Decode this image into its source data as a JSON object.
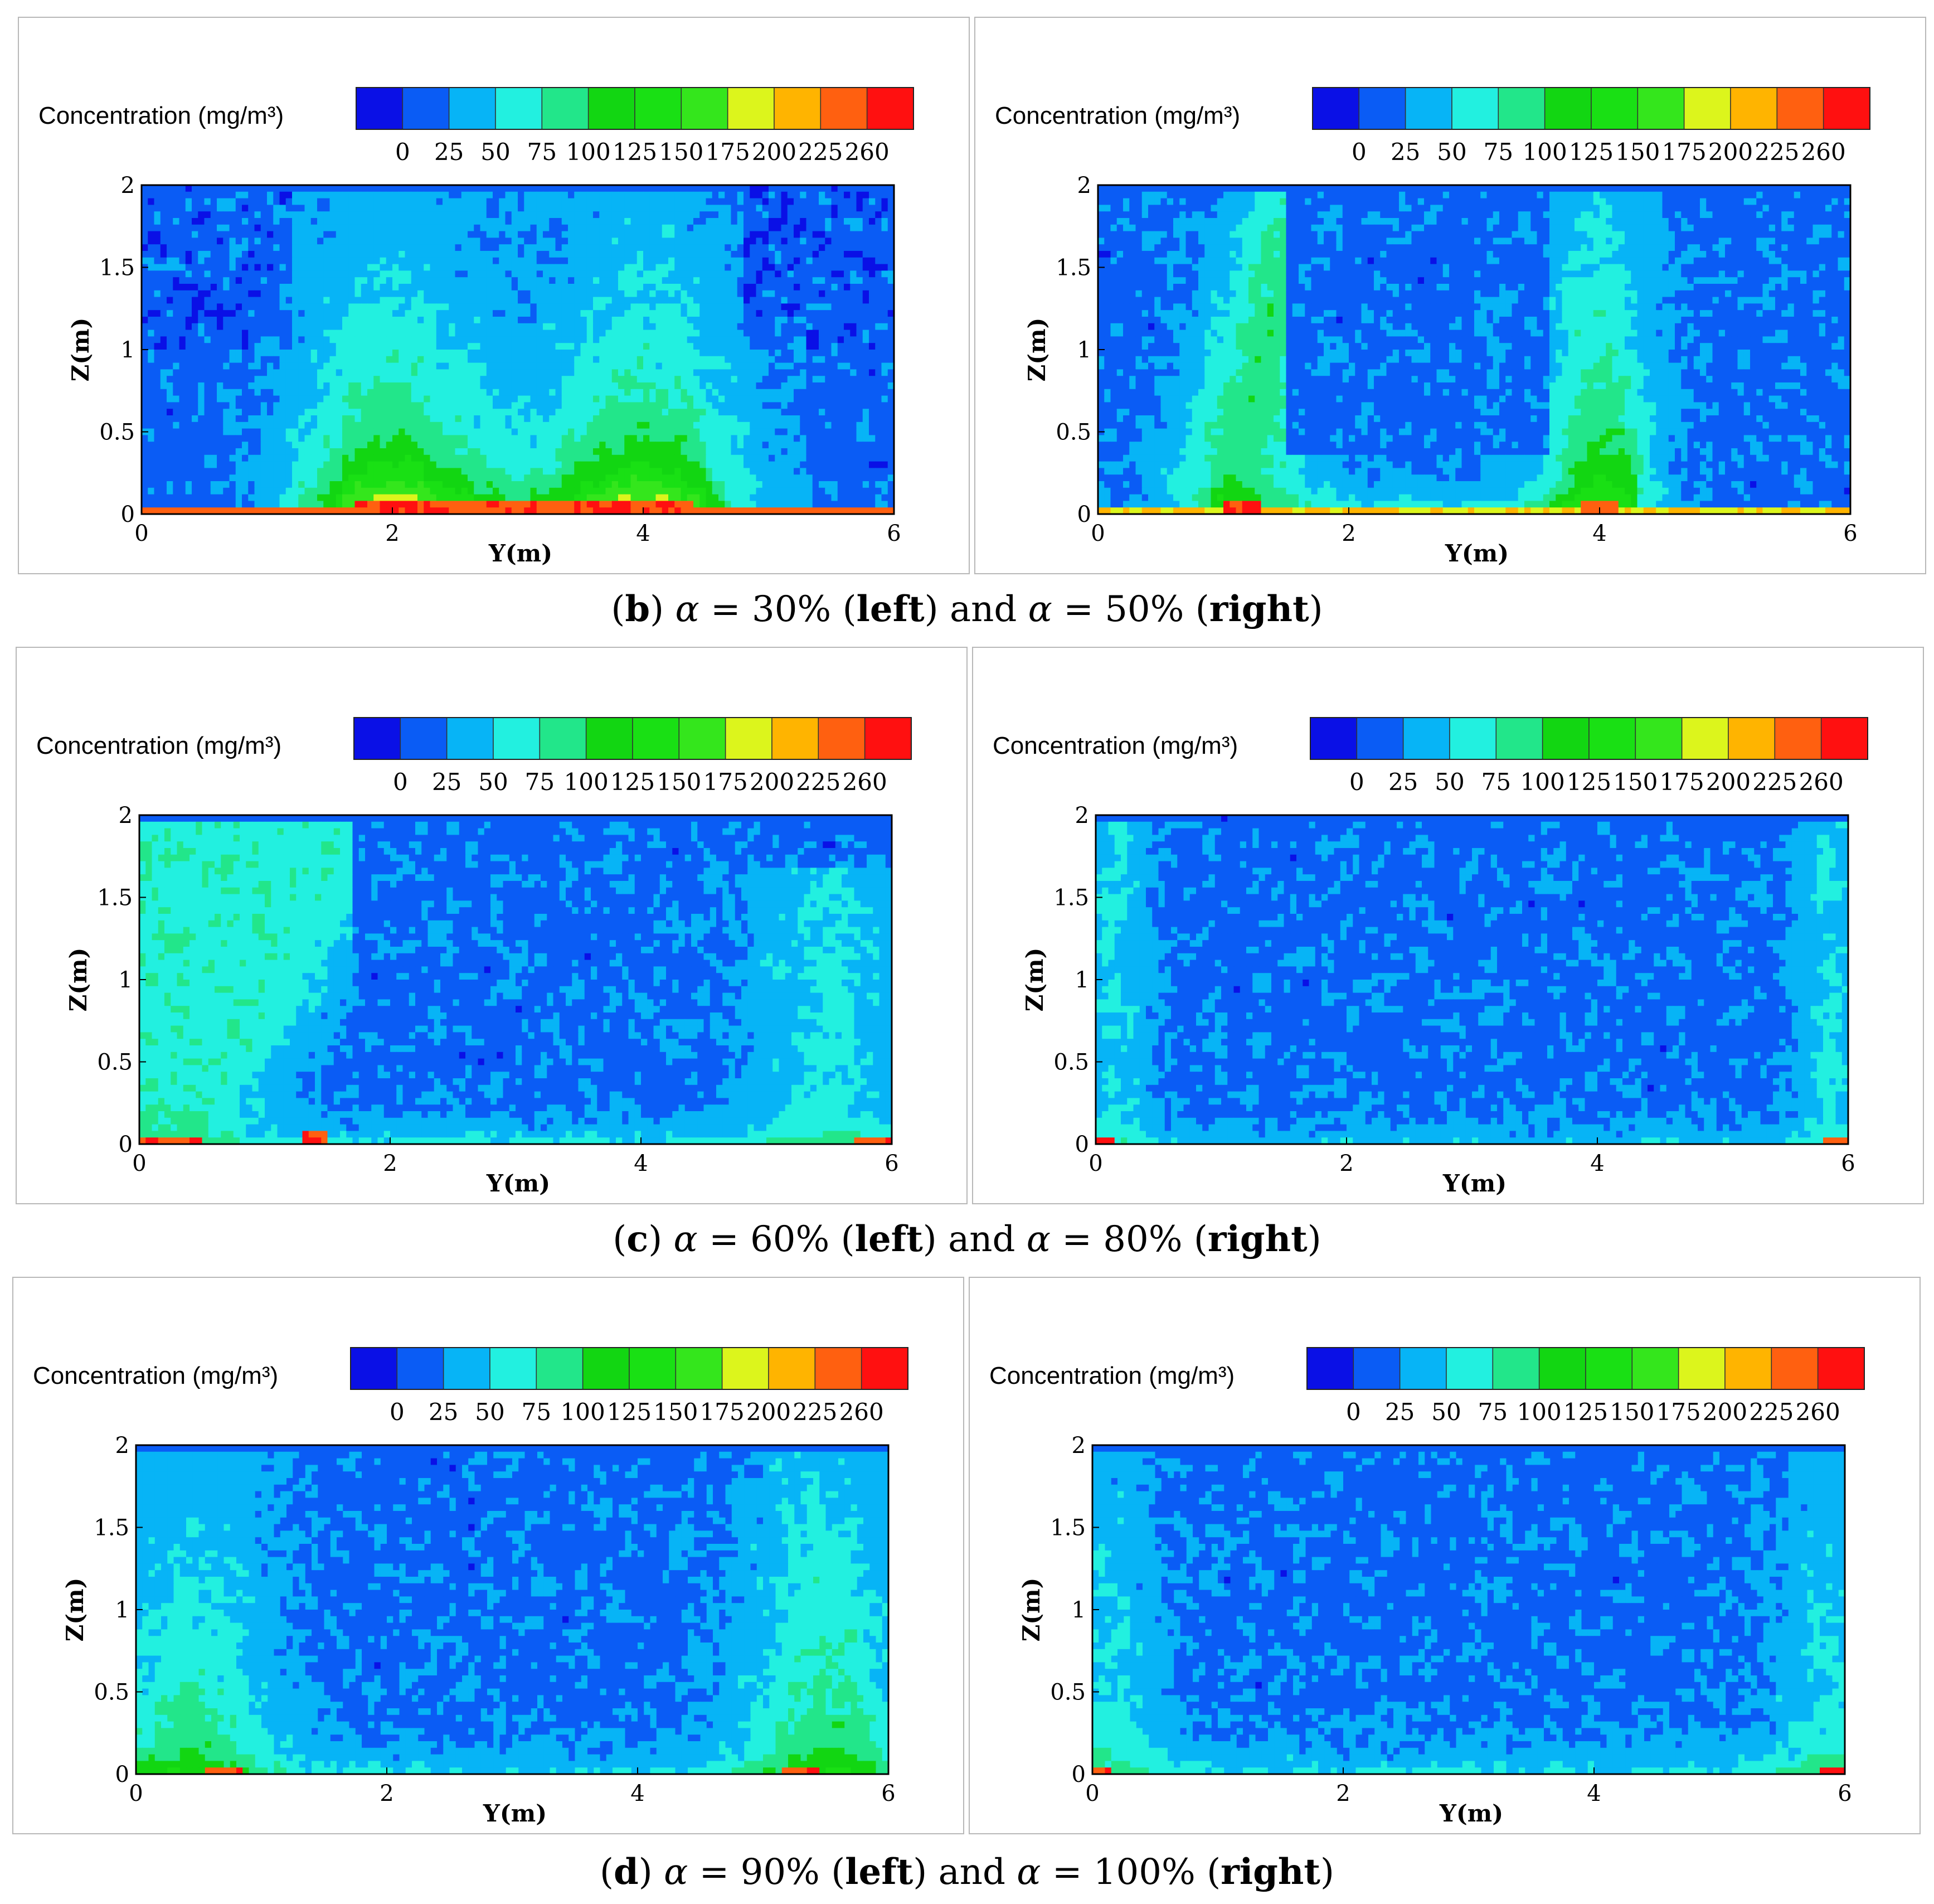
{
  "colorbar": {
    "label": "Concentration (mg/m³)",
    "ticks": [
      "0",
      "25",
      "50",
      "75",
      "100",
      "125",
      "150",
      "175",
      "200",
      "225",
      "260"
    ],
    "colors": [
      "#0a10e6",
      "#0a5cf5",
      "#07b4f6",
      "#22f0e0",
      "#22e68a",
      "#12d612",
      "#19e014",
      "#34e61c",
      "#dcf51c",
      "#ffb400",
      "#ff6010",
      "#ff1010"
    ]
  },
  "axes": {
    "xlabel": "Y(m)",
    "ylabel": "Z(m)",
    "xticks": [
      "0",
      "2",
      "4",
      "6"
    ],
    "yticks": [
      "0",
      "0.5",
      "1",
      "1.5",
      "2"
    ]
  },
  "captions": {
    "b": {
      "letter": "b",
      "sym": "α",
      "left_val": "30%",
      "right_val": "50%",
      "left": "left",
      "right": "right",
      "and": "and"
    },
    "c": {
      "letter": "c",
      "sym": "α",
      "left_val": "60%",
      "right_val": "80%",
      "left": "left",
      "right": "right",
      "and": "and"
    },
    "d": {
      "letter": "d",
      "sym": "α",
      "left_val": "90%",
      "right_val": "100%",
      "left": "left",
      "right": "right",
      "and": "and"
    }
  },
  "chart_data": [
    {
      "type": "heatmap",
      "alpha": "30%",
      "xlabel": "Y(m)",
      "ylabel": "Z(m)",
      "xlim": [
        0,
        6
      ],
      "ylim": [
        0,
        2
      ],
      "levels": [
        0,
        25,
        50,
        75,
        100,
        125,
        150,
        175,
        200,
        225,
        260
      ],
      "plumes_y": [
        2,
        4
      ],
      "note_peak_y": [
        2,
        4
      ]
    },
    {
      "type": "heatmap",
      "alpha": "50%",
      "xlabel": "Y(m)",
      "ylabel": "Z(m)",
      "xlim": [
        0,
        6
      ],
      "ylim": [
        0,
        2
      ],
      "levels": [
        0,
        25,
        50,
        75,
        100,
        125,
        150,
        175,
        200,
        225,
        260
      ],
      "plumes_y": [
        1.1,
        4
      ]
    },
    {
      "type": "heatmap",
      "alpha": "60%",
      "xlabel": "Y(m)",
      "ylabel": "Z(m)",
      "xlim": [
        0,
        6
      ],
      "ylim": [
        0,
        2
      ],
      "levels": [
        0,
        25,
        50,
        75,
        100,
        125,
        150,
        175,
        200,
        225,
        260
      ],
      "plumes_y": [
        1.4
      ]
    },
    {
      "type": "heatmap",
      "alpha": "80%",
      "xlabel": "Y(m)",
      "ylabel": "Z(m)",
      "xlim": [
        0,
        6
      ],
      "ylim": [
        0,
        2
      ],
      "levels": [
        0,
        25,
        50,
        75,
        100,
        125,
        150,
        175,
        200,
        225,
        260
      ],
      "plumes_y": [
        0.1,
        5.9
      ]
    },
    {
      "type": "heatmap",
      "alpha": "90%",
      "xlabel": "Y(m)",
      "ylabel": "Z(m)",
      "xlim": [
        0,
        6
      ],
      "ylim": [
        0,
        2
      ],
      "levels": [
        0,
        25,
        50,
        75,
        100,
        125,
        150,
        175,
        200,
        225,
        260
      ],
      "plumes_y": [
        0.7,
        5.3
      ]
    },
    {
      "type": "heatmap",
      "alpha": "100%",
      "xlabel": "Y(m)",
      "ylabel": "Z(m)",
      "xlim": [
        0,
        6
      ],
      "ylim": [
        0,
        2
      ],
      "levels": [
        0,
        25,
        50,
        75,
        100,
        125,
        150,
        175,
        200,
        225,
        260
      ],
      "plumes_y": [
        0.1,
        5.9
      ]
    }
  ]
}
